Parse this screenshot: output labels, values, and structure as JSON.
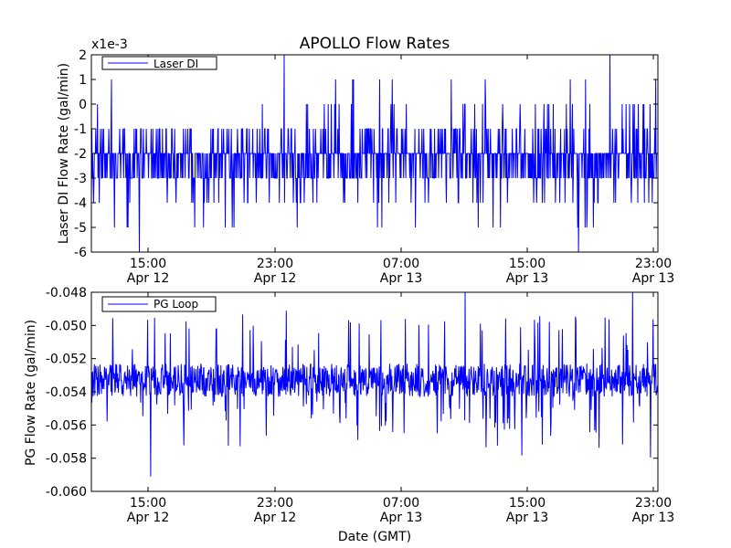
{
  "title": "APOLLO Flow Rates",
  "xlabel": "Date (GMT)",
  "chart_data": [
    {
      "type": "line",
      "name": "laser-di",
      "ylabel": "Laser DI Flow Rate (gal/min)",
      "offset_label": "x1e-3",
      "ylim": [
        -6,
        2
      ],
      "yticks": [
        "2",
        "1",
        "0",
        "-1",
        "-2",
        "-3",
        "-4",
        "-5",
        "-6"
      ],
      "xticks": [
        {
          "time": "15:00",
          "date": "Apr 12"
        },
        {
          "time": "23:00",
          "date": "Apr 12"
        },
        {
          "time": "07:00",
          "date": "Apr 13"
        },
        {
          "time": "15:00",
          "date": "Apr 13"
        },
        {
          "time": "23:00",
          "date": "Apr 13"
        }
      ],
      "xrange": [
        "Apr 12 11:20",
        "Apr 13 23:30"
      ],
      "legend": {
        "label": "Laser DI",
        "placement": "top-left"
      },
      "color": "#0000ff",
      "typical_range": [
        -3,
        -1
      ],
      "extremes": {
        "min": -6,
        "max": 2
      }
    },
    {
      "type": "line",
      "name": "pg-loop",
      "ylabel": "PG Flow Rate (gal/min)",
      "ylim": [
        -0.06,
        -0.048
      ],
      "yticks": [
        "-0.048",
        "-0.050",
        "-0.052",
        "-0.054",
        "-0.056",
        "-0.058",
        "-0.060"
      ],
      "xticks": [
        {
          "time": "15:00",
          "date": "Apr 12"
        },
        {
          "time": "23:00",
          "date": "Apr 12"
        },
        {
          "time": "07:00",
          "date": "Apr 13"
        },
        {
          "time": "15:00",
          "date": "Apr 13"
        },
        {
          "time": "23:00",
          "date": "Apr 13"
        }
      ],
      "xrange": [
        "Apr 12 11:20",
        "Apr 13 23:30"
      ],
      "legend": {
        "label": "PG Loop",
        "placement": "top-left"
      },
      "color": "#0000ff",
      "typical_range": [
        -0.0543,
        -0.0523
      ],
      "extremes": {
        "min": -0.0591,
        "max": -0.048
      }
    }
  ]
}
